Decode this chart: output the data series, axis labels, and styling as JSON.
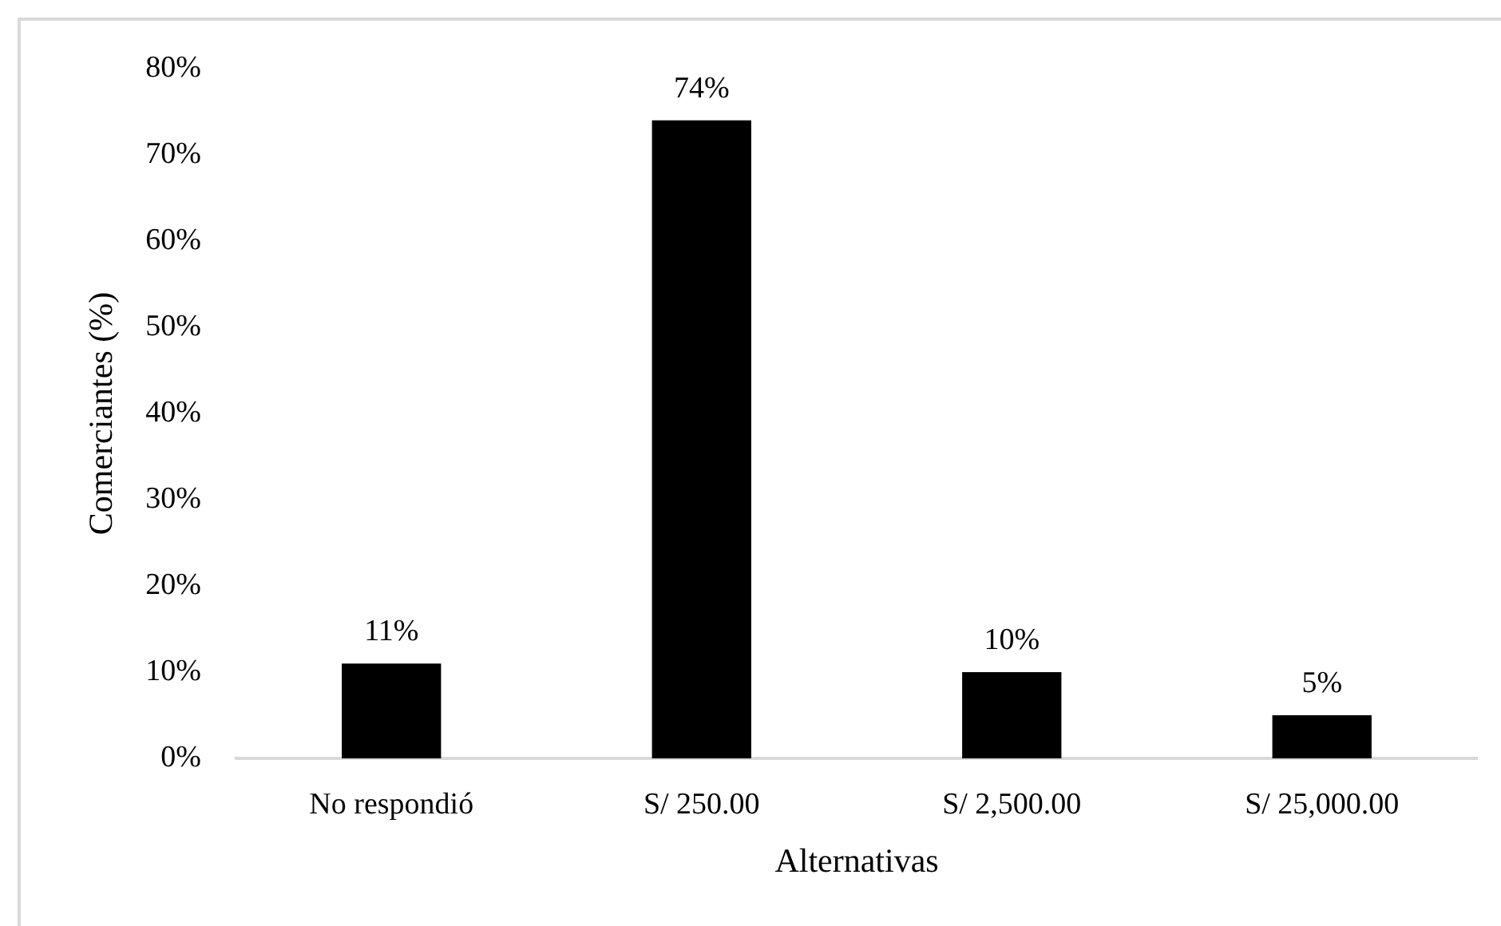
{
  "chart_data": {
    "type": "bar",
    "xlabel": "Alternativas",
    "ylabel": "Comerciantes (%)",
    "categories": [
      "No respondió",
      "S/ 250.00",
      "S/ 2,500.00",
      "S/ 25,000.00"
    ],
    "values": [
      11,
      74,
      10,
      5
    ],
    "color": "#000000",
    "value_labels": [
      "11%",
      "74%",
      "10%",
      "5%"
    ],
    "ylim": [
      0,
      80
    ],
    "yticks": [
      {
        "value": 0,
        "label": "0%"
      },
      {
        "value": 10,
        "label": "10%"
      },
      {
        "value": 20,
        "label": "20%"
      },
      {
        "value": 30,
        "label": "30%"
      },
      {
        "value": 40,
        "label": "40%"
      },
      {
        "value": 50,
        "label": "50%"
      },
      {
        "value": 60,
        "label": "60%"
      },
      {
        "value": 70,
        "label": "70%"
      },
      {
        "value": 80,
        "label": "80%"
      }
    ]
  }
}
